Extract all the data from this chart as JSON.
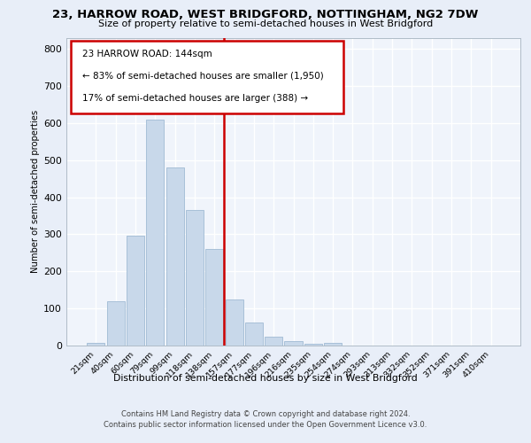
{
  "title1": "23, HARROW ROAD, WEST BRIDGFORD, NOTTINGHAM, NG2 7DW",
  "title2": "Size of property relative to semi-detached houses in West Bridgford",
  "xlabel": "Distribution of semi-detached houses by size in West Bridgford",
  "ylabel": "Number of semi-detached properties",
  "footer": "Contains HM Land Registry data © Crown copyright and database right 2024.\nContains public sector information licensed under the Open Government Licence v3.0.",
  "bar_labels": [
    "21sqm",
    "40sqm",
    "60sqm",
    "79sqm",
    "99sqm",
    "118sqm",
    "138sqm",
    "157sqm",
    "177sqm",
    "196sqm",
    "216sqm",
    "235sqm",
    "254sqm",
    "274sqm",
    "293sqm",
    "313sqm",
    "332sqm",
    "352sqm",
    "371sqm",
    "391sqm",
    "410sqm"
  ],
  "bar_values": [
    8,
    120,
    295,
    610,
    480,
    365,
    260,
    125,
    62,
    25,
    12,
    5,
    7,
    0,
    0,
    0,
    0,
    0,
    0,
    0,
    0
  ],
  "bar_color": "#c8d8ea",
  "bar_edgecolor": "#a8c0d8",
  "property_label": "23 HARROW ROAD: 144sqm",
  "property_bar_index": 6,
  "vline_color": "#cc0000",
  "annotation_text1": "← 83% of semi-detached houses are smaller (1,950)",
  "annotation_text2": "17% of semi-detached houses are larger (388) →",
  "annotation_box_color": "#ffffff",
  "annotation_border_color": "#cc0000",
  "ylim": [
    0,
    830
  ],
  "yticks": [
    0,
    100,
    200,
    300,
    400,
    500,
    600,
    700,
    800
  ],
  "bg_color": "#e8eef8",
  "plot_bg_color": "#f0f4fb",
  "grid_color": "#ffffff"
}
